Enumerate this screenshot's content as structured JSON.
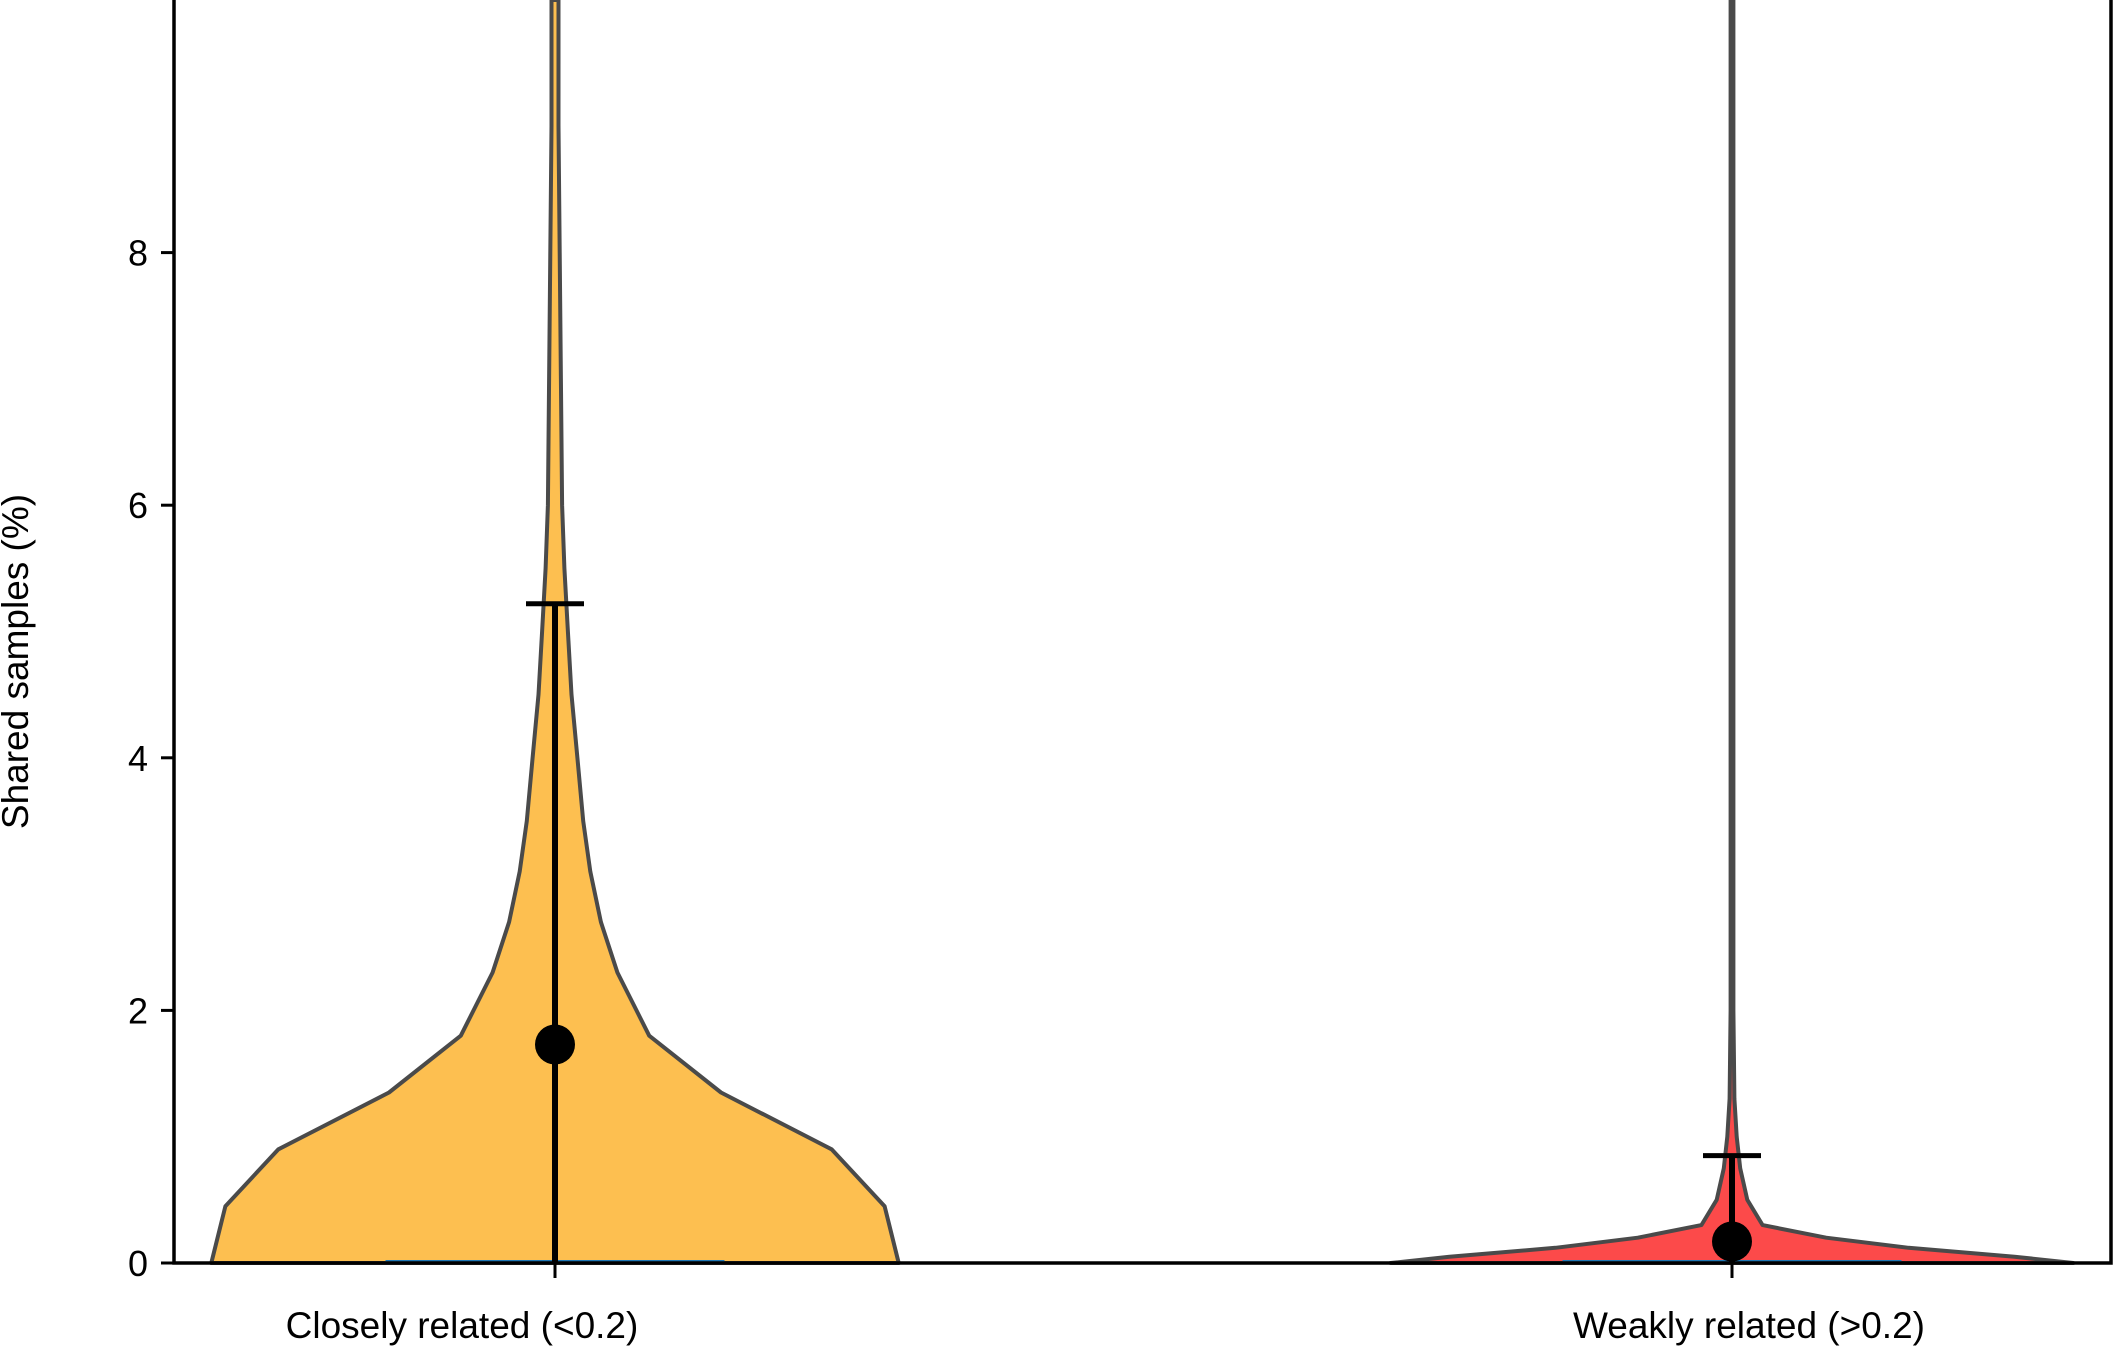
{
  "chart_data": {
    "type": "violin",
    "ylabel": "Shared samples (%)",
    "ylim": [
      0,
      10
    ],
    "yticks": [
      0,
      2,
      4,
      6,
      8
    ],
    "categories": [
      "Closely related (<0.2)",
      "Weakly related (>0.2)"
    ],
    "series": [
      {
        "category": "Closely related (<0.2)",
        "color": "#fdbf50",
        "mean": 1.73,
        "errorbar": [
          0,
          5.22
        ],
        "median": 0,
        "density_profile": [
          {
            "y": 0,
            "halfwidth": 0.292
          },
          {
            "y": 0.45,
            "halfwidth": 0.28
          },
          {
            "y": 0.9,
            "halfwidth": 0.235
          },
          {
            "y": 1.35,
            "halfwidth": 0.141
          },
          {
            "y": 1.8,
            "halfwidth": 0.08
          },
          {
            "y": 2.3,
            "halfwidth": 0.053
          },
          {
            "y": 2.7,
            "halfwidth": 0.039
          },
          {
            "y": 3.1,
            "halfwidth": 0.03
          },
          {
            "y": 3.5,
            "halfwidth": 0.024
          },
          {
            "y": 4.0,
            "halfwidth": 0.019
          },
          {
            "y": 4.5,
            "halfwidth": 0.014
          },
          {
            "y": 5.0,
            "halfwidth": 0.011
          },
          {
            "y": 5.5,
            "halfwidth": 0.008
          },
          {
            "y": 6.0,
            "halfwidth": 0.006
          },
          {
            "y": 7.0,
            "halfwidth": 0.005
          },
          {
            "y": 8.0,
            "halfwidth": 0.004
          },
          {
            "y": 9.0,
            "halfwidth": 0.003
          },
          {
            "y": 10.0,
            "halfwidth": 0.003
          }
        ]
      },
      {
        "category": "Weakly related (>0.2)",
        "color": "#fc4a4a",
        "mean": 0.17,
        "errorbar": [
          0,
          0.85
        ],
        "median": 0,
        "density_profile": [
          {
            "y": 0,
            "halfwidth": 0.29
          },
          {
            "y": 0.05,
            "halfwidth": 0.24
          },
          {
            "y": 0.12,
            "halfwidth": 0.15
          },
          {
            "y": 0.2,
            "halfwidth": 0.08
          },
          {
            "y": 0.3,
            "halfwidth": 0.026
          },
          {
            "y": 0.5,
            "halfwidth": 0.013
          },
          {
            "y": 0.75,
            "halfwidth": 0.007
          },
          {
            "y": 1.0,
            "halfwidth": 0.004
          },
          {
            "y": 1.3,
            "halfwidth": 0.002
          },
          {
            "y": 2.0,
            "halfwidth": 0.0012
          },
          {
            "y": 4.0,
            "halfwidth": 0.0012
          },
          {
            "y": 10.0,
            "halfwidth": 0.0012
          }
        ]
      }
    ],
    "grid": false,
    "legend": "none"
  }
}
